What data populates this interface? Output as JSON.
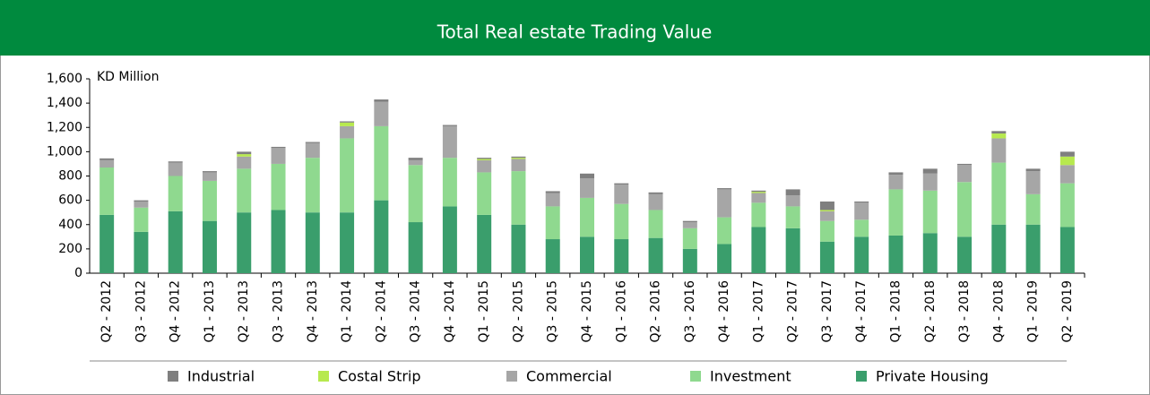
{
  "chart_data": {
    "type": "bar",
    "stacked": true,
    "title": "Total Real estate Trading Value",
    "y_label": "KD Million",
    "categories": [
      "Q2 - 2012",
      "Q3 - 2012",
      "Q4 - 2012",
      "Q1 - 2013",
      "Q2 - 2013",
      "Q3 - 2013",
      "Q4 - 2013",
      "Q1 - 2014",
      "Q2 - 2014",
      "Q3 - 2014",
      "Q4 - 2014",
      "Q1 - 2015",
      "Q2 - 2015",
      "Q3 - 2015",
      "Q4 - 2015",
      "Q1 - 2016",
      "Q2 - 2016",
      "Q3 - 2016",
      "Q4 - 2016",
      "Q1 - 2017",
      "Q2 - 2017",
      "Q3 - 2017",
      "Q4 - 2017",
      "Q1 - 2018",
      "Q2 - 2018",
      "Q3 - 2018",
      "Q4 - 2018",
      "Q1 - 2019",
      "Q2 - 2019"
    ],
    "series": [
      {
        "name": "Industrial",
        "color": "#7f7f7f",
        "values": [
          15,
          10,
          10,
          10,
          20,
          10,
          10,
          10,
          20,
          20,
          10,
          10,
          10,
          15,
          40,
          10,
          15,
          10,
          10,
          10,
          50,
          70,
          10,
          20,
          40,
          10,
          20,
          20,
          40
        ]
      },
      {
        "name": "Costal Strip",
        "color": "#b7e94e",
        "values": [
          0,
          0,
          0,
          0,
          20,
          0,
          0,
          30,
          0,
          0,
          0,
          10,
          10,
          0,
          0,
          0,
          0,
          0,
          0,
          10,
          0,
          10,
          0,
          0,
          0,
          0,
          40,
          0,
          70
        ]
      },
      {
        "name": "Commercial",
        "color": "#a6a6a6",
        "values": [
          60,
          50,
          110,
          70,
          100,
          130,
          120,
          100,
          200,
          40,
          260,
          100,
          100,
          110,
          160,
          160,
          130,
          50,
          230,
          80,
          90,
          80,
          140,
          120,
          140,
          140,
          200,
          190,
          150
        ]
      },
      {
        "name": "Investment",
        "color": "#8fd98f",
        "values": [
          390,
          200,
          290,
          330,
          360,
          380,
          450,
          610,
          610,
          470,
          400,
          350,
          440,
          270,
          320,
          290,
          230,
          170,
          220,
          200,
          180,
          170,
          140,
          380,
          350,
          450,
          510,
          250,
          360
        ]
      },
      {
        "name": "Private Housing",
        "color": "#3a9e6c",
        "values": [
          480,
          340,
          510,
          430,
          500,
          520,
          500,
          500,
          600,
          420,
          550,
          480,
          400,
          280,
          300,
          280,
          290,
          200,
          240,
          380,
          370,
          260,
          300,
          310,
          330,
          300,
          400,
          400,
          380
        ]
      }
    ],
    "ylim": [
      0,
      1600
    ],
    "yticks": [
      0,
      200,
      400,
      600,
      800,
      {
        "value": 1000,
        "label": "1,000"
      },
      {
        "value": 1200,
        "label": "1,200"
      },
      {
        "value": 1400,
        "label": "1,400"
      },
      {
        "value": 1600,
        "label": "1,600"
      }
    ],
    "legend": "bottom"
  }
}
